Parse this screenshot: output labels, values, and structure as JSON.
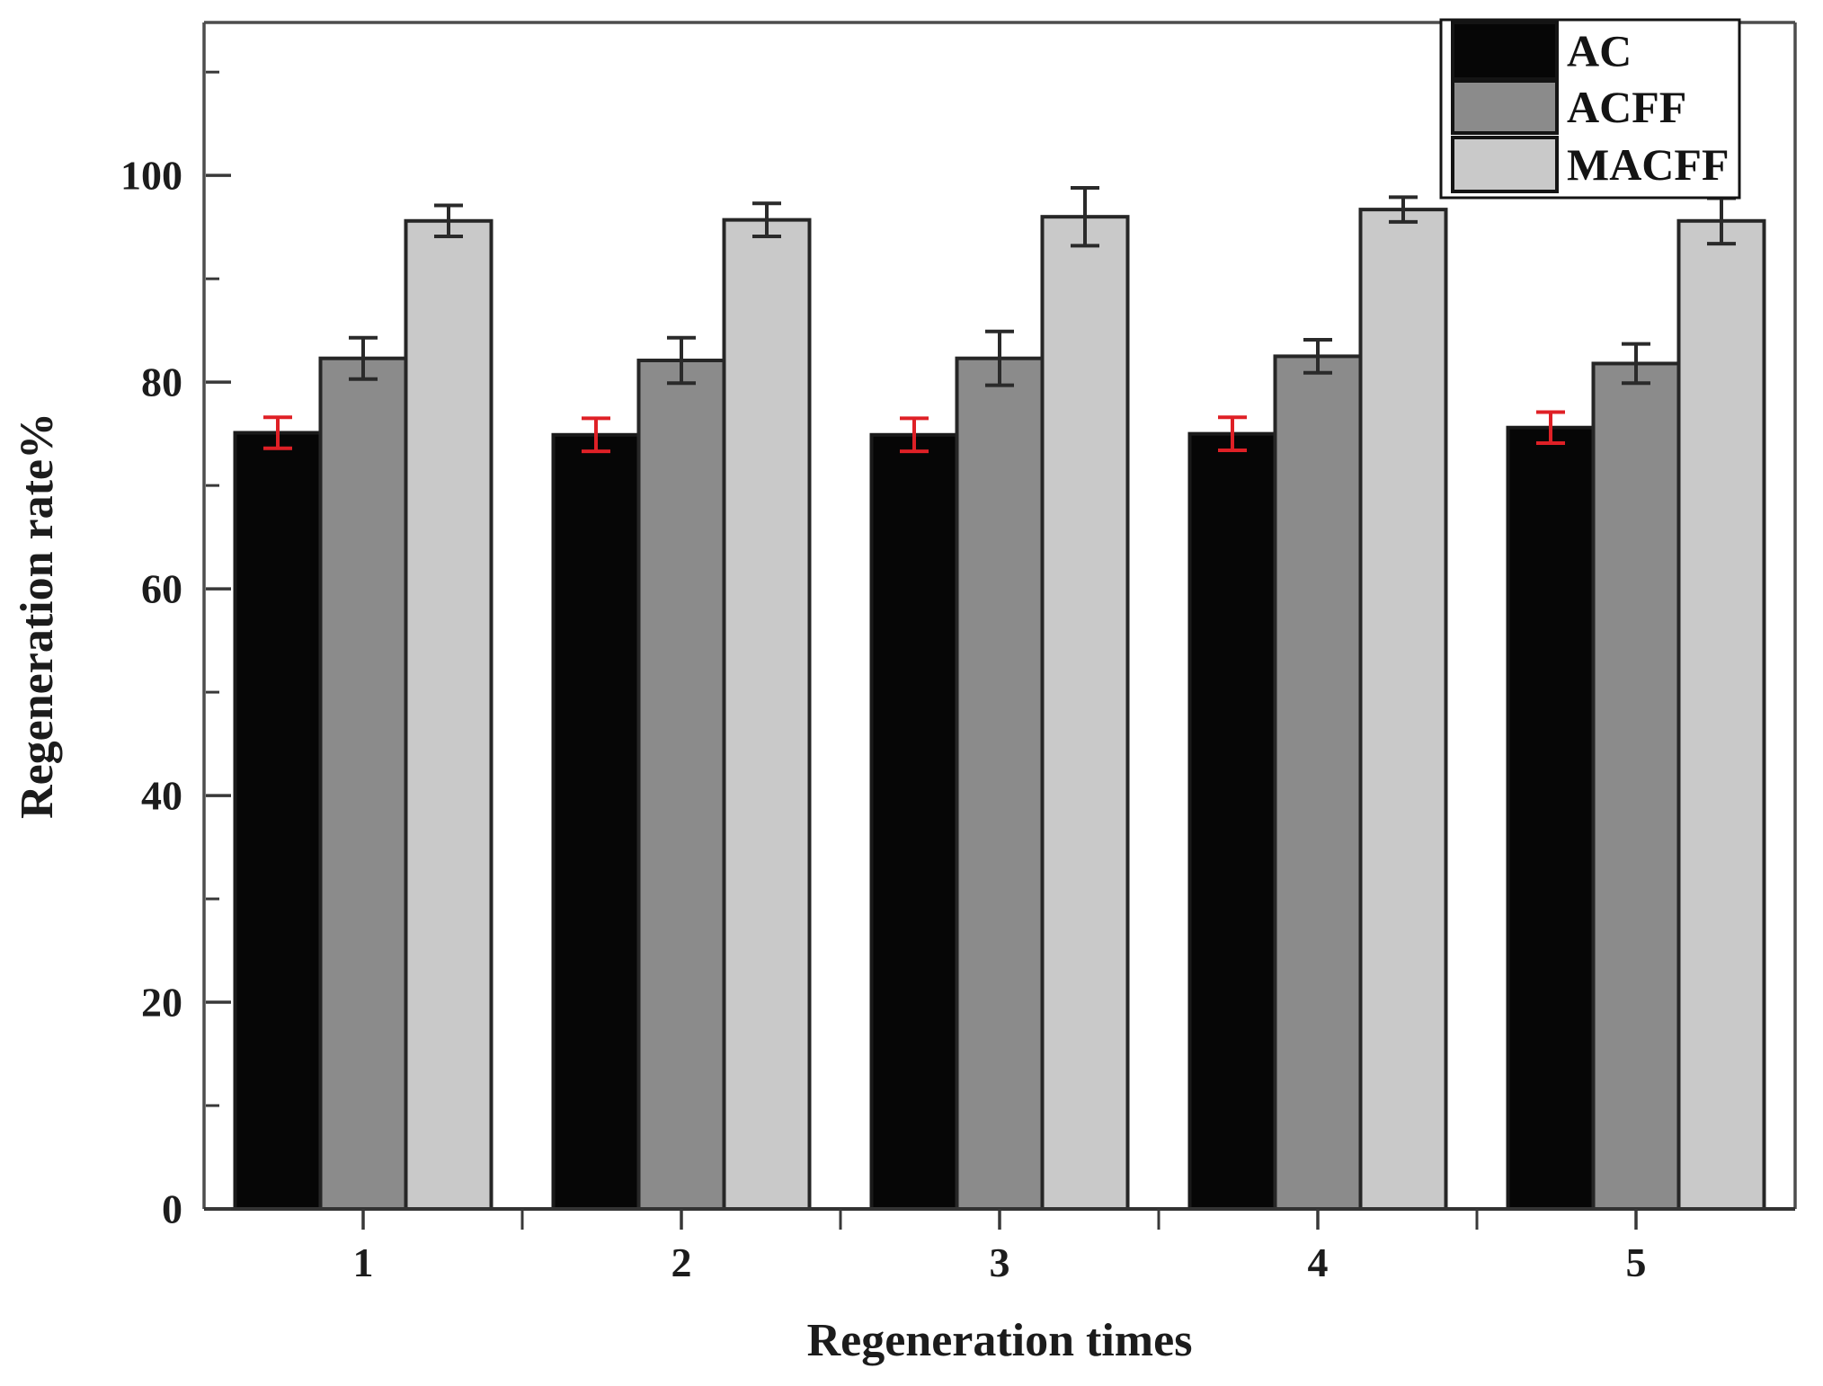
{
  "figure": {
    "kind": "static-scientific-figure"
  },
  "chart_data": {
    "type": "bar",
    "title": "",
    "xlabel": "Regeneration times",
    "ylabel": "Regeneration rate%",
    "categories": [
      "1",
      "2",
      "3",
      "4",
      "5"
    ],
    "series": [
      {
        "name": "AC",
        "color": "#060606",
        "edge_color": "#1a1a1a",
        "error_color": "#df2026",
        "values": [
          75.1,
          74.9,
          74.9,
          75.0,
          75.6
        ],
        "errors": [
          1.5,
          1.6,
          1.6,
          1.6,
          1.5
        ]
      },
      {
        "name": "ACFF",
        "color": "#8b8b8b",
        "edge_color": "#262626",
        "error_color": "#2a2a2a",
        "values": [
          82.3,
          82.1,
          82.3,
          82.5,
          81.8
        ],
        "errors": [
          2.0,
          2.2,
          2.6,
          1.6,
          1.9
        ]
      },
      {
        "name": "MACFF",
        "color": "#c9c9c9",
        "edge_color": "#262626",
        "error_color": "#2a2a2a",
        "values": [
          95.6,
          95.7,
          96.0,
          96.7,
          95.6
        ],
        "errors": [
          1.5,
          1.6,
          2.8,
          1.2,
          2.2
        ]
      }
    ],
    "ylim": [
      0,
      114.8
    ],
    "yticks_major": [
      0,
      20,
      40,
      60,
      80,
      100
    ],
    "yticks_minor": [
      10,
      30,
      50,
      70,
      90,
      110
    ],
    "grid": false,
    "legend_position": "top-right",
    "legend_labels": [
      "AC",
      "ACFF",
      "MACFF"
    ],
    "axis_color": "#4d4d4d",
    "tick_color": "#383838",
    "text_color": "#1c1c1c"
  }
}
